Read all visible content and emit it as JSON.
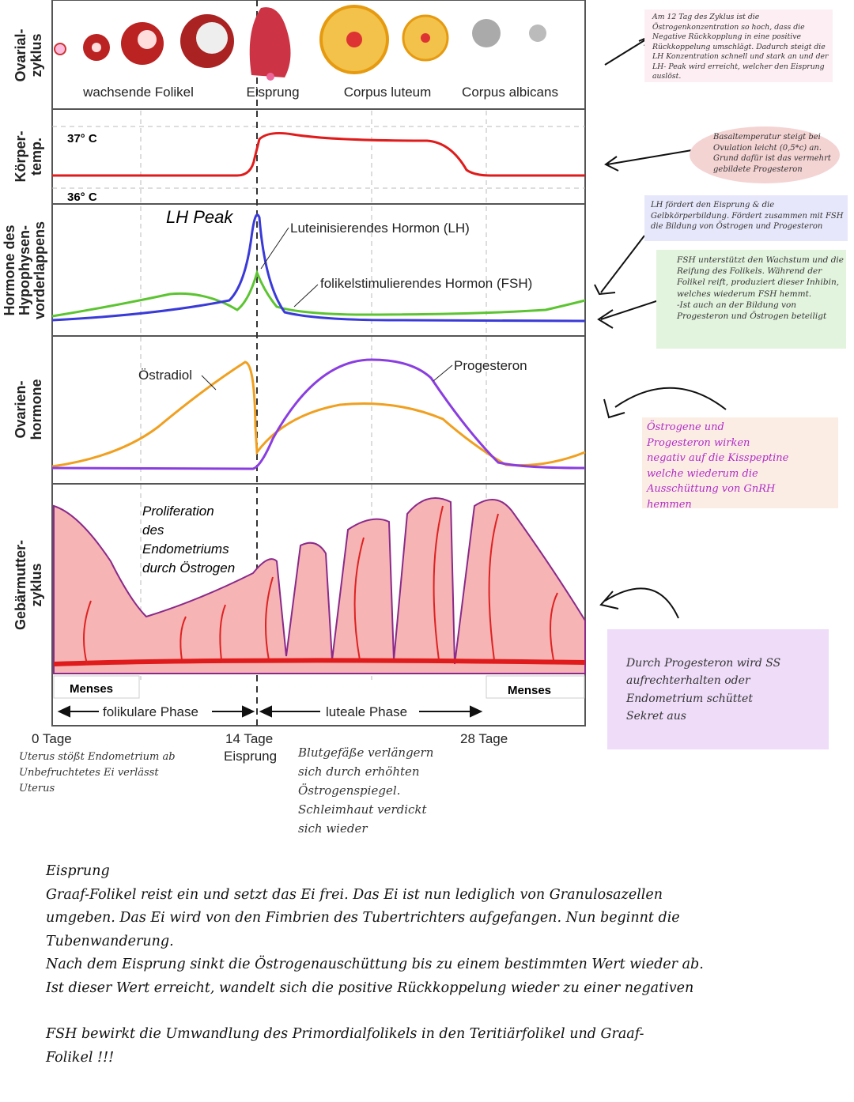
{
  "rows": {
    "ovarial": [
      "Ovarial-",
      "zyklus"
    ],
    "temp": [
      "Körper-",
      "temp."
    ],
    "hypophyse": [
      "Hormone des",
      "Hypophysen-",
      "vorderlappens"
    ],
    "ovarien": [
      "Ovarien-",
      "hormone"
    ],
    "gebaermutter": [
      "Gebärmutter-",
      "zyklus"
    ]
  },
  "ovary_labels": [
    "wachsende Folikel",
    "Eisprung",
    "Corpus luteum",
    "Corpus albicans"
  ],
  "temp_labels": {
    "high": "37° C",
    "low": "36° C"
  },
  "hormone_labels": {
    "lh_peak": "LH Peak",
    "lh": "Luteinisierendes Hormon (LH)",
    "fsh": "folikelstimulierendes Hormon (FSH)",
    "estradiol": "Östradiol",
    "progesteron": "Progesteron"
  },
  "uterus_labels": {
    "proliferation": [
      "Proliferation",
      "des",
      "Endometriums",
      "durch Östrogen"
    ],
    "menses_left": "Menses",
    "menses_right": "Menses",
    "phase_follicular": "folikulare Phase",
    "phase_luteal": "luteale Phase"
  },
  "axis": {
    "day0": "0 Tage",
    "day14": [
      "14 Tage",
      "Eisprung"
    ],
    "day28": "28 Tage"
  },
  "colors": {
    "temp": "#e01b1b",
    "lh": "#3a3ad8",
    "fsh": "#5cc431",
    "estradiol": "#f0a020",
    "progesteron": "#8a3ee0",
    "endometrium": "#f7b4b4"
  },
  "notes": {
    "n1": "Am 12 Tag des Zyklus ist die Östrogenkonzentration so hoch, dass die Negative Rückkopplung in eine positive Rückkoppelung umschlägt. Dadurch steigt die LH Konzentration schnell und stark an und der LH- Peak wird erreicht, welcher den Eisprung auslöst.",
    "n2": "Basaltemperatur steigt bei Ovulation leicht (0,5*c) an. Grund dafür ist das vermehrt gebildete Progesteron",
    "n3": "LH fördert den Eisprung & die Gelbkörperbildung. Fördert zusammen mit FSH die Bildung von Östrogen und Progesteron",
    "n4": "FSH unterstützt den Wachstum und die Reifung des Folikels. Während der Folikel reift, produziert dieser Inhibin, welches wiederum FSH hemmt.\n-Ist auch an der Bildung von Progesteron und Östrogen beteiligt",
    "n5": "Östrogene und Progesteron wirken negativ auf die Kisspeptine welche wiederum die Ausschüttung von GnRH hemmen",
    "n6": "Durch Progesteron wird SS aufrechterhalten oder Endometrium schüttet Sekret aus"
  },
  "below_notes": {
    "left": "Uterus stößt Endometrium ab\nUnbefruchtetes Ei verlässt\nUterus",
    "middle": "Blutgefäße verlängern\nsich durch erhöhten\nÖstrogenspiegel.\nSchleimhaut verdickt\nsich wieder"
  },
  "body_text": {
    "heading": "Eisprung",
    "lines": [
      "Graaf-Folikel reist ein und setzt das Ei frei. Das Ei ist nun lediglich von Granulosazellen",
      "umgeben. Das Ei wird von den Fimbrien des Tubertrichters aufgefangen. Nun beginnt die",
      "Tubenwanderung.",
      "Nach dem Eisprung sinkt die Östrogenauschüttung bis zu einem bestimmten Wert wieder ab.",
      "Ist dieser Wert erreicht, wandelt sich die positive Rückkoppelung wieder zu einer negativen"
    ],
    "fsh_lines": [
      "FSH bewirkt die Umwandlung des Primordialfolikels in den Teritiärfolikel  und Graaf-",
      "Folikel !!!"
    ]
  }
}
